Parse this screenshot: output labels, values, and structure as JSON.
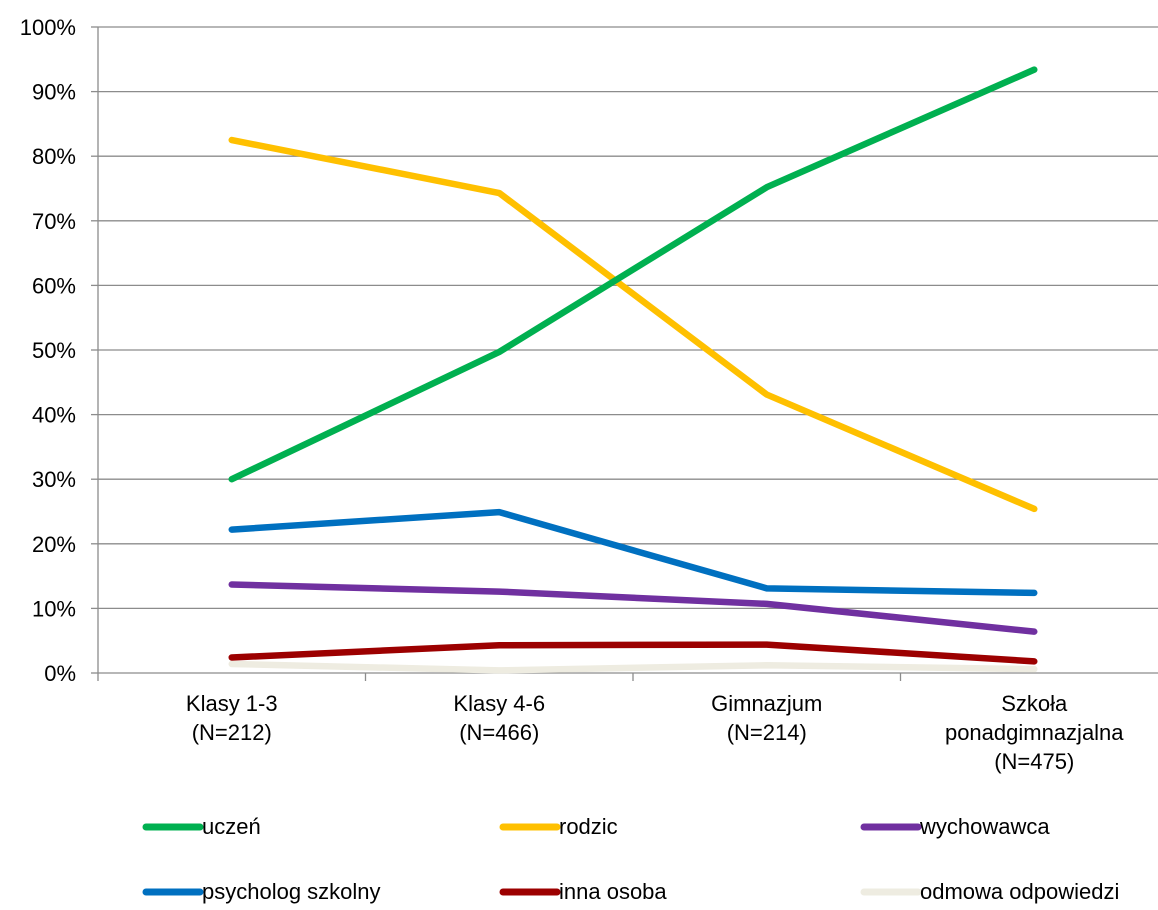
{
  "chart_data": {
    "type": "line",
    "categories": [
      [
        "Klasy 1-3",
        "(N=212)"
      ],
      [
        "Klasy 4-6",
        "(N=466)"
      ],
      [
        "Gimnazjum",
        "(N=214)"
      ],
      [
        "Szkoła",
        "ponadgimnazjalna",
        "(N=475)"
      ]
    ],
    "ylim": [
      0,
      100
    ],
    "yticks": [
      "0%",
      "10%",
      "20%",
      "30%",
      "40%",
      "50%",
      "60%",
      "70%",
      "80%",
      "90%",
      "100%"
    ],
    "grid": true,
    "legend_position": "bottom",
    "series": [
      {
        "name": "uczeń",
        "color": "#00b050",
        "values": [
          30,
          49.7,
          75.2,
          93.4
        ]
      },
      {
        "name": "rodzic",
        "color": "#ffc000",
        "values": [
          82.5,
          74.3,
          43.1,
          25.4
        ]
      },
      {
        "name": "wychowawca",
        "color": "#7030a0",
        "values": [
          13.7,
          12.6,
          10.7,
          6.4
        ]
      },
      {
        "name": "psycholog szkolny",
        "color": "#0070c0",
        "values": [
          22.2,
          24.9,
          13.1,
          12.4
        ]
      },
      {
        "name": "inna osoba",
        "color": "#9c0000",
        "values": [
          2.4,
          4.3,
          4.4,
          1.8
        ]
      },
      {
        "name": "odmowa odpowiedzi",
        "color": "#eeece1",
        "values": [
          1.4,
          0.4,
          1.2,
          0.6
        ]
      }
    ]
  }
}
